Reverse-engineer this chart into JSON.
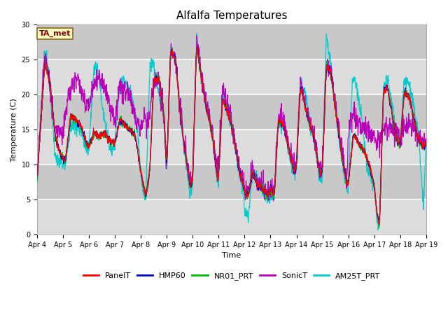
{
  "title": "Alfalfa Temperatures",
  "xlabel": "Time",
  "ylabel": "Temperature (C)",
  "annotation_text": "TA_met",
  "annotation_color": "#8B0000",
  "annotation_bg": "#FFFFC8",
  "annotation_border": "#8B6914",
  "ylim": [
    0,
    30
  ],
  "yticks": [
    0,
    5,
    10,
    15,
    20,
    25,
    30
  ],
  "x_labels": [
    "Apr 4",
    "Apr 5",
    "Apr 6",
    "Apr 7",
    "Apr 8",
    "Apr 9",
    "Apr 10",
    "Apr 11",
    "Apr 12",
    "Apr 13",
    "Apr 14",
    "Apr 15",
    "Apr 16",
    "Apr 17",
    "Apr 18",
    "Apr 19"
  ],
  "line_colors": {
    "PanelT": "#FF0000",
    "HMP60": "#0000CD",
    "NR01_PRT": "#00BB00",
    "SonicT": "#BB00BB",
    "AM25T_PRT": "#00CCCC"
  },
  "bg_light": "#DCDCDC",
  "bg_dark": "#C8C8C8",
  "grid_color": "#FFFFFF",
  "title_fontsize": 11,
  "axis_fontsize": 8,
  "tick_fontsize": 7,
  "legend_fontsize": 8,
  "linewidth": 0.9
}
